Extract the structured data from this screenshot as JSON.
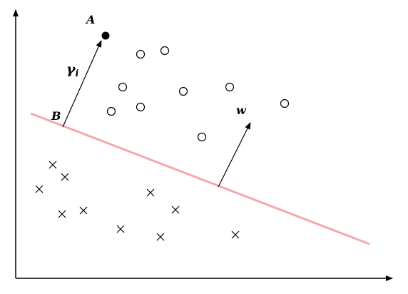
{
  "labels": {
    "a": "A",
    "b": "B",
    "gamma": "γ",
    "gamma_sub": "i",
    "w": "w"
  }
}
